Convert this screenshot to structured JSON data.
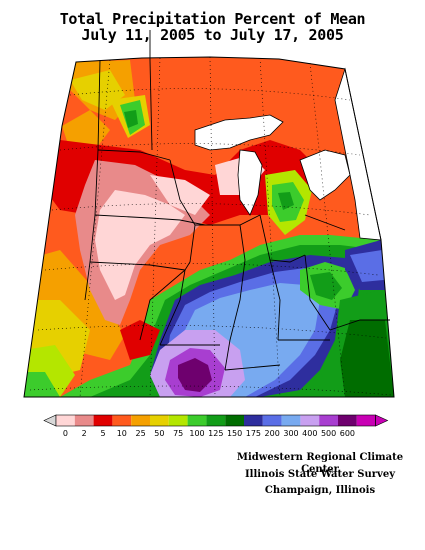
{
  "title_line1": "Total Precipitation Percent of Mean",
  "title_line2": "July 11, 2005 to July 17, 2005",
  "legend": {
    "labels": [
      "0",
      "2",
      "5",
      "10",
      "25",
      "50",
      "75",
      "100",
      "125",
      "150",
      "175",
      "200",
      "300",
      "400",
      "500",
      "600"
    ],
    "colors": [
      "#ffd6d6",
      "#e88a8a",
      "#e00000",
      "#ff5a1e",
      "#f5a000",
      "#e6d000",
      "#b4e600",
      "#3ccc2c",
      "#129d18",
      "#006d00",
      "#2e2e9e",
      "#5a6ee6",
      "#78aaf0",
      "#c8a0f0",
      "#a83ed0",
      "#6e006e",
      "#c800b4"
    ],
    "arrow_left_color": "#d8d8d8",
    "arrow_right_color": "#c800b4"
  },
  "credits": {
    "line1": "Midwestern Regional Climate Center",
    "line2": "Illinois State Water Survey",
    "line3": "Champaign, Illinois"
  },
  "map": {
    "region": "Midwestern United States",
    "lake_color": "#ffffff",
    "state_line_color": "#000000",
    "grid_line_color": "#000000"
  }
}
